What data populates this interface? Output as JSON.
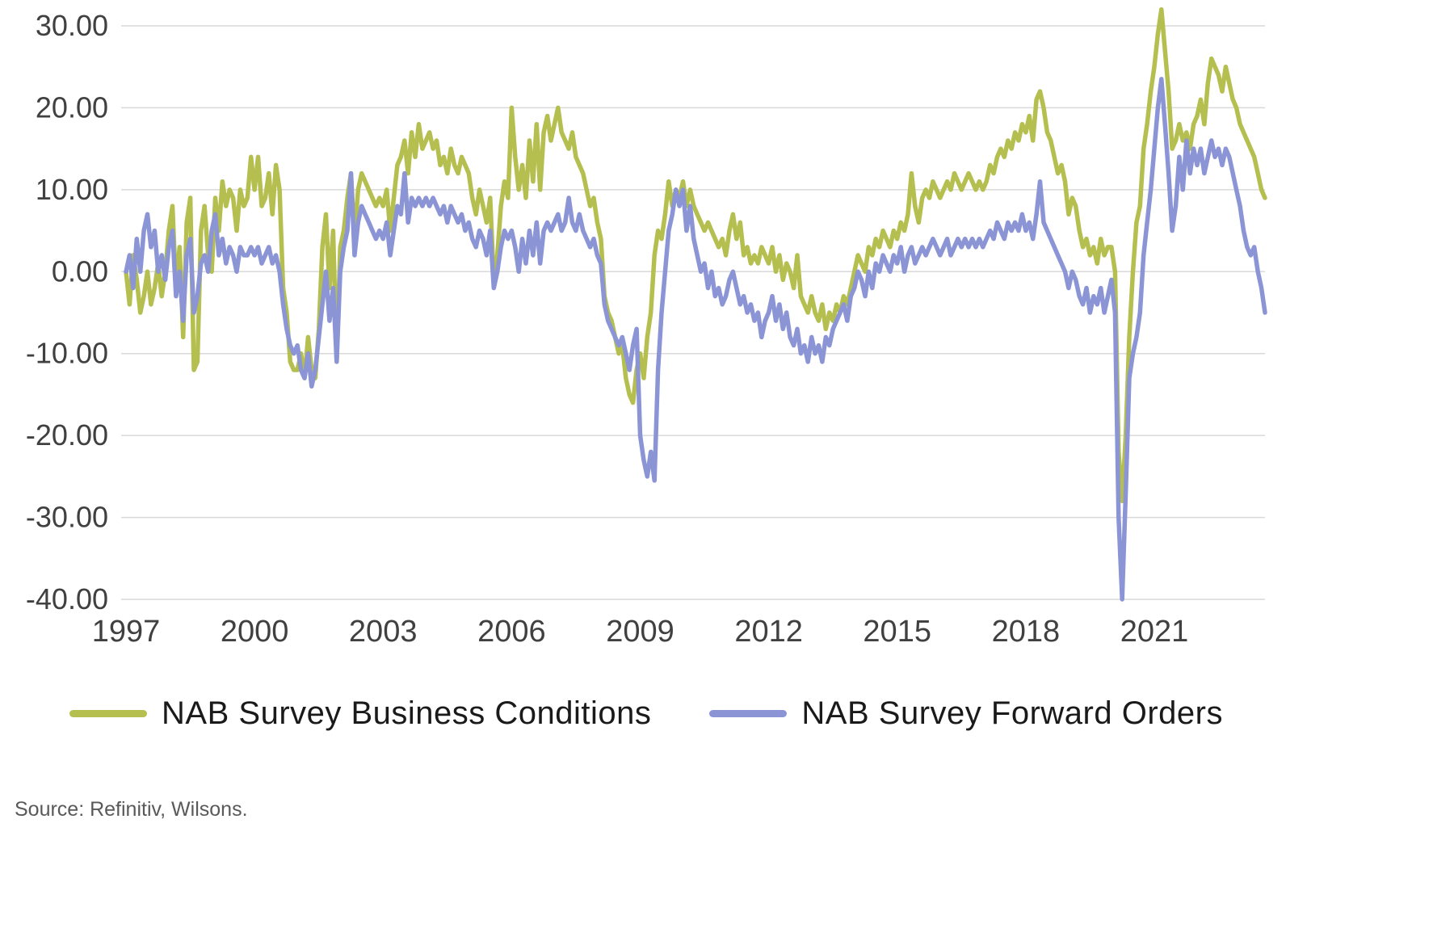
{
  "source_note": "Source: Refinitiv, Wilsons.",
  "chart_data": {
    "type": "line",
    "title": "",
    "xlabel": "",
    "ylabel": "",
    "ylim": [
      -40,
      30
    ],
    "y_ticks": [
      30,
      20,
      10,
      0,
      -10,
      -20,
      -30,
      -40
    ],
    "y_tick_labels": [
      "30.00",
      "20.00",
      "10.00",
      "0.00",
      "-10.00",
      "-20.00",
      "-30.00",
      "-40.00"
    ],
    "x_ticks": [
      1997,
      2000,
      2003,
      2006,
      2009,
      2012,
      2015,
      2018,
      2021
    ],
    "start_year": 1997,
    "points_per_year": 12,
    "grid": true,
    "grid_color": "#d9d9d9",
    "tick_color": "#404040",
    "legend_position": "bottom",
    "series": [
      {
        "id": "business-conditions",
        "name": "NAB Survey Business Conditions",
        "color": "#b5bf4f",
        "values": [
          0,
          -4,
          2,
          -1,
          -5,
          -3,
          0,
          -4,
          -2,
          1,
          -3,
          0,
          5,
          8,
          -2,
          3,
          -8,
          6,
          9,
          -12,
          -11,
          5,
          8,
          2,
          0,
          9,
          5,
          11,
          8,
          10,
          9,
          5,
          10,
          8,
          9,
          14,
          10,
          14,
          8,
          9,
          12,
          7,
          13,
          10,
          -2,
          -5,
          -11,
          -12,
          -12,
          -10,
          -13,
          -8,
          -12,
          -13,
          -7,
          3,
          7,
          -2,
          5,
          -11,
          3,
          5,
          9,
          12,
          4,
          10,
          12,
          11,
          10,
          9,
          8,
          9,
          8,
          10,
          5,
          9,
          13,
          14,
          16,
          12,
          17,
          14,
          18,
          15,
          16,
          17,
          15,
          16,
          13,
          14,
          12,
          15,
          13,
          12,
          14,
          13,
          12,
          9,
          7,
          10,
          8,
          6,
          9,
          -1,
          2,
          8,
          11,
          9,
          20,
          14,
          10,
          13,
          9,
          16,
          11,
          18,
          10,
          17,
          19,
          16,
          18,
          20,
          17,
          16,
          15,
          17,
          14,
          13,
          12,
          10,
          8,
          9,
          6,
          4,
          -3,
          -5,
          -6,
          -8,
          -10,
          -9,
          -13,
          -15,
          -16,
          -12,
          -10,
          -13,
          -8,
          -5,
          2,
          5,
          4,
          7,
          11,
          8,
          10,
          9,
          11,
          8,
          10,
          8,
          7,
          6,
          5,
          6,
          5,
          4,
          3,
          4,
          2,
          5,
          7,
          4,
          6,
          2,
          3,
          1,
          2,
          1,
          3,
          2,
          1,
          3,
          0,
          2,
          -1,
          1,
          0,
          -2,
          2,
          -3,
          -4,
          -5,
          -3,
          -5,
          -6,
          -4,
          -7,
          -5,
          -6,
          -4,
          -5,
          -3,
          -4,
          -2,
          0,
          2,
          1,
          0,
          3,
          2,
          4,
          3,
          5,
          4,
          3,
          5,
          4,
          6,
          5,
          7,
          12,
          8,
          6,
          9,
          10,
          9,
          11,
          10,
          9,
          10,
          11,
          10,
          12,
          11,
          10,
          11,
          12,
          11,
          10,
          11,
          10,
          11,
          13,
          12,
          14,
          15,
          14,
          16,
          15,
          17,
          16,
          18,
          17,
          19,
          16,
          21,
          22,
          20,
          17,
          16,
          14,
          12,
          13,
          11,
          7,
          9,
          8,
          5,
          3,
          4,
          2,
          3,
          1,
          4,
          2,
          3,
          3,
          0,
          -22,
          -28,
          -20,
          -8,
          0,
          6,
          8,
          15,
          18,
          22,
          25,
          29,
          32,
          27,
          22,
          15,
          16,
          18,
          16,
          17,
          15,
          18,
          19,
          21,
          18,
          23,
          26,
          25,
          24,
          22,
          25,
          23,
          21,
          20,
          18,
          17,
          16,
          15,
          14,
          12,
          10,
          9
        ]
      },
      {
        "id": "forward-orders",
        "name": "NAB Survey Forward Orders",
        "color": "#8b95d6",
        "values": [
          0,
          2,
          -2,
          4,
          0,
          5,
          7,
          3,
          5,
          0,
          2,
          -1,
          3,
          5,
          -3,
          0,
          -6,
          2,
          4,
          -5,
          -3,
          1,
          2,
          0,
          5,
          7,
          2,
          4,
          1,
          3,
          2,
          0,
          3,
          2,
          2,
          3,
          2,
          3,
          1,
          2,
          3,
          1,
          2,
          0,
          -4,
          -7,
          -9,
          -10,
          -9,
          -12,
          -13,
          -10,
          -14,
          -12,
          -8,
          -4,
          0,
          -6,
          -2,
          -11,
          0,
          3,
          5,
          12,
          2,
          6,
          8,
          7,
          6,
          5,
          4,
          5,
          4,
          6,
          2,
          5,
          8,
          7,
          12,
          6,
          9,
          8,
          9,
          8,
          9,
          8,
          9,
          8,
          7,
          8,
          6,
          8,
          7,
          6,
          7,
          5,
          6,
          4,
          3,
          5,
          4,
          2,
          5,
          -2,
          0,
          3,
          5,
          4,
          5,
          3,
          0,
          4,
          1,
          5,
          2,
          6,
          1,
          5,
          6,
          5,
          6,
          7,
          5,
          6,
          9,
          6,
          5,
          7,
          5,
          4,
          3,
          4,
          2,
          1,
          -4,
          -6,
          -7,
          -8,
          -9,
          -8,
          -10,
          -12,
          -9,
          -7,
          -20,
          -23,
          -25,
          -22,
          -25.5,
          -12,
          -5,
          0,
          5,
          7,
          10,
          8,
          10,
          5,
          8,
          4,
          2,
          0,
          1,
          -2,
          0,
          -3,
          -2,
          -4,
          -3,
          -1,
          0,
          -2,
          -4,
          -3,
          -5,
          -4,
          -6,
          -5,
          -8,
          -6,
          -5,
          -3,
          -6,
          -4,
          -7,
          -5,
          -8,
          -9,
          -7,
          -10,
          -9,
          -11,
          -8,
          -10,
          -9,
          -11,
          -8,
          -9,
          -7,
          -6,
          -5,
          -4,
          -6,
          -3,
          -2,
          0,
          -1,
          -3,
          0,
          -2,
          1,
          0,
          2,
          1,
          0,
          2,
          1,
          3,
          0,
          2,
          3,
          1,
          2,
          3,
          2,
          3,
          4,
          3,
          2,
          3,
          4,
          2,
          3,
          4,
          3,
          4,
          3,
          4,
          3,
          4,
          3,
          4,
          5,
          4,
          6,
          5,
          4,
          6,
          5,
          6,
          5,
          7,
          5,
          6,
          4,
          7,
          11,
          6,
          5,
          4,
          3,
          2,
          1,
          0,
          -2,
          0,
          -1,
          -3,
          -4,
          -2,
          -5,
          -3,
          -4,
          -2,
          -5,
          -3,
          -1,
          -5,
          -30,
          -40,
          -27,
          -13,
          -10,
          -8,
          -5,
          2,
          6,
          10,
          15,
          20,
          23.5,
          18,
          12,
          5,
          8,
          14,
          10,
          16,
          12,
          15,
          13,
          15,
          12,
          14,
          16,
          14,
          15,
          13,
          15,
          14,
          12,
          10,
          8,
          5,
          3,
          2,
          3,
          0,
          -2,
          -5
        ]
      }
    ]
  }
}
